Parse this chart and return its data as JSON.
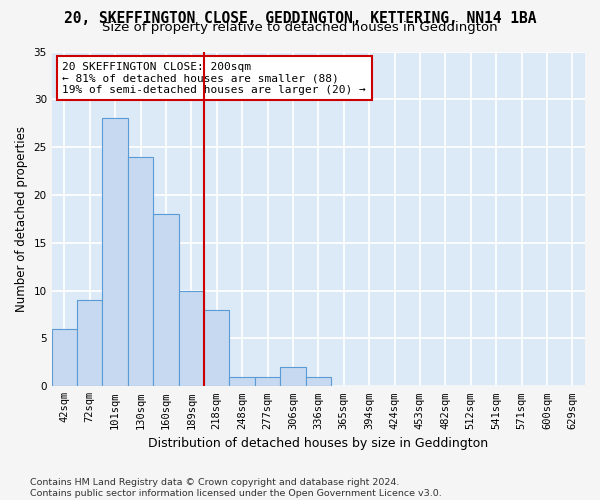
{
  "title": "20, SKEFFINGTON CLOSE, GEDDINGTON, KETTERING, NN14 1BA",
  "subtitle": "Size of property relative to detached houses in Geddington",
  "xlabel": "Distribution of detached houses by size in Geddington",
  "ylabel": "Number of detached properties",
  "bar_values": [
    6,
    9,
    28,
    24,
    18,
    10,
    8,
    1,
    1,
    2,
    1,
    0,
    0,
    0,
    0,
    0,
    0,
    0,
    0,
    0,
    0
  ],
  "bar_labels": [
    "42sqm",
    "72sqm",
    "101sqm",
    "130sqm",
    "160sqm",
    "189sqm",
    "218sqm",
    "248sqm",
    "277sqm",
    "306sqm",
    "336sqm",
    "365sqm",
    "394sqm",
    "424sqm",
    "453sqm",
    "482sqm",
    "512sqm",
    "541sqm",
    "571sqm",
    "600sqm",
    "629sqm"
  ],
  "bar_color": "#c6d9f0",
  "bar_edge_color": "#5b9bd5",
  "background_color": "#dce9f7",
  "grid_color": "#ffffff",
  "vline_x": 6.0,
  "vline_color": "#cc0000",
  "annotation_text": "20 SKEFFINGTON CLOSE: 200sqm\n← 81% of detached houses are smaller (88)\n19% of semi-detached houses are larger (20) →",
  "annotation_box_color": "#ffffff",
  "annotation_box_edge": "#cc0000",
  "ylim": [
    0,
    35
  ],
  "yticks": [
    0,
    5,
    10,
    15,
    20,
    25,
    30,
    35
  ],
  "footer": "Contains HM Land Registry data © Crown copyright and database right 2024.\nContains public sector information licensed under the Open Government Licence v3.0.",
  "title_fontsize": 10.5,
  "subtitle_fontsize": 9.5,
  "xlabel_fontsize": 9,
  "ylabel_fontsize": 8.5,
  "tick_fontsize": 7.5,
  "annotation_fontsize": 8,
  "footer_fontsize": 6.8
}
